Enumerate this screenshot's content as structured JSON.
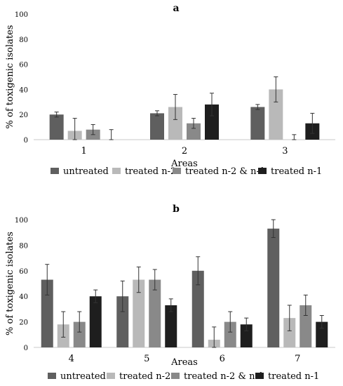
{
  "colors": {
    "untreated": "#5f5f5f",
    "treated_n2": "#b9b9b9",
    "treated_n2_n1": "#898989",
    "treated_n1": "#1e1e1e",
    "axis": "#c8c8c8",
    "errorbar": "#333333"
  },
  "chart_data": [
    {
      "type": "bar",
      "panel": "a",
      "xlabel": "Areas",
      "ylabel": "% of toxigenic isolates",
      "ylim": [
        0,
        100
      ],
      "yticks": [
        0,
        20,
        40,
        60,
        80,
        100
      ],
      "grid": false,
      "legend_position": "bottom",
      "categories": [
        "1",
        "2",
        "3"
      ],
      "series": [
        {
          "name": "untreated",
          "color": "#5f5f5f",
          "values": [
            20,
            21,
            26
          ],
          "errors": [
            2,
            2,
            2
          ]
        },
        {
          "name": "treated n-2",
          "color": "#b9b9b9",
          "values": [
            7,
            26,
            40
          ],
          "errors": [
            10,
            10,
            10
          ]
        },
        {
          "name": "treated n-2 & n-1",
          "color": "#898989",
          "values": [
            8,
            13,
            0
          ],
          "errors": [
            4,
            4,
            4
          ]
        },
        {
          "name": "treated n-1",
          "color": "#1e1e1e",
          "values": [
            0,
            28,
            13
          ],
          "errors": [
            8,
            9,
            8
          ]
        }
      ]
    },
    {
      "type": "bar",
      "panel": "b",
      "xlabel": "Areas",
      "ylabel": "% of toxigenic isolates",
      "ylim": [
        0,
        100
      ],
      "yticks": [
        0,
        20,
        40,
        60,
        80,
        100
      ],
      "grid": false,
      "legend_position": "bottom",
      "categories": [
        "4",
        "5",
        "6",
        "7"
      ],
      "series": [
        {
          "name": "untreated",
          "color": "#5f5f5f",
          "values": [
            53,
            40,
            60,
            93
          ],
          "errors": [
            12,
            12,
            11,
            7
          ]
        },
        {
          "name": "treated n-2",
          "color": "#b9b9b9",
          "values": [
            18,
            53,
            6,
            23
          ],
          "errors": [
            10,
            10,
            10,
            10
          ]
        },
        {
          "name": "treated n-2 & n-1",
          "color": "#898989",
          "values": [
            20,
            53,
            20,
            33
          ],
          "errors": [
            8,
            8,
            8,
            8
          ]
        },
        {
          "name": "treated n-1",
          "color": "#1e1e1e",
          "values": [
            40,
            33,
            18,
            20
          ],
          "errors": [
            5,
            5,
            5,
            5
          ]
        }
      ]
    }
  ]
}
